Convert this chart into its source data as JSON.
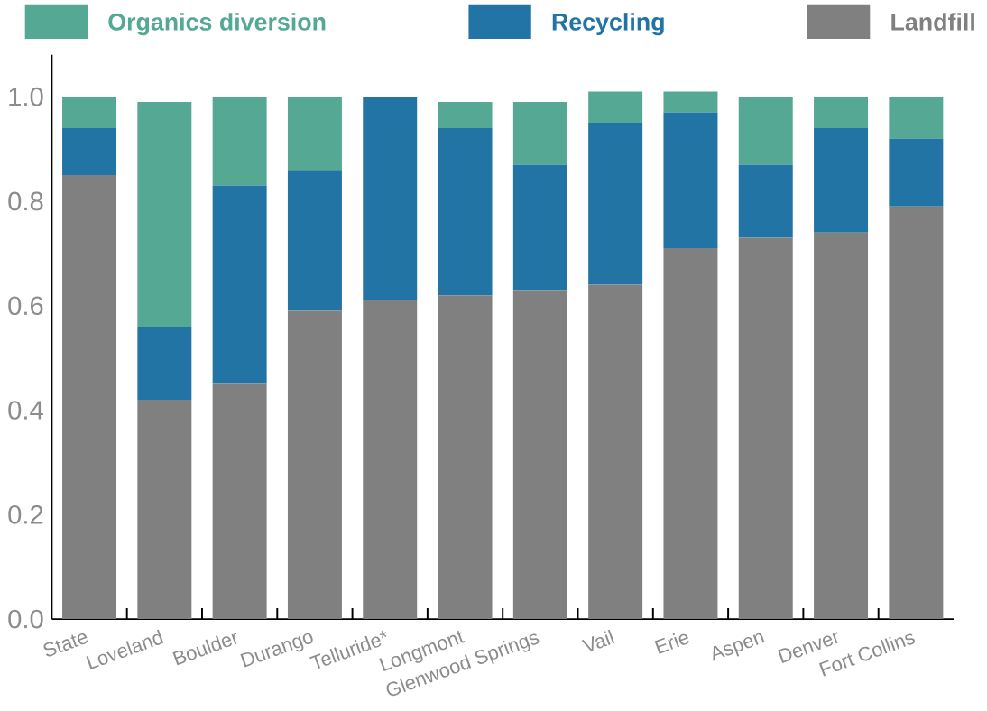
{
  "chart_data": {
    "type": "bar",
    "stacked": true,
    "categories": [
      "State",
      "Loveland",
      "Boulder",
      "Durango",
      "Telluride*",
      "Longmont",
      "Glenwood Springs",
      "Vail",
      "Erie",
      "Aspen",
      "Denver",
      "Fort Collins"
    ],
    "series": [
      {
        "name": "Landfill",
        "color": "#808080",
        "values": [
          0.85,
          0.42,
          0.45,
          0.59,
          0.61,
          0.62,
          0.63,
          0.64,
          0.71,
          0.73,
          0.74,
          0.79
        ]
      },
      {
        "name": "Recycling",
        "color": "#2274a5",
        "values": [
          0.09,
          0.14,
          0.38,
          0.27,
          0.39,
          0.32,
          0.24,
          0.31,
          0.26,
          0.14,
          0.2,
          0.13
        ]
      },
      {
        "name": "Organics diversion",
        "color": "#55a893",
        "values": [
          0.06,
          0.43,
          0.17,
          0.14,
          0.0,
          0.05,
          0.12,
          0.06,
          0.04,
          0.13,
          0.06,
          0.08
        ]
      }
    ],
    "ylim": [
      0,
      1.08
    ],
    "yticks": [
      {
        "value": 0,
        "label": "0.0"
      },
      {
        "value": 0.2,
        "label": "0.2"
      },
      {
        "value": 0.4,
        "label": "0.4"
      },
      {
        "value": 0.6,
        "label": "0.6"
      },
      {
        "value": 0.8,
        "label": "0.8"
      },
      {
        "value": 1.0,
        "label": "1.0"
      }
    ],
    "legend": "top",
    "grid": false
  }
}
